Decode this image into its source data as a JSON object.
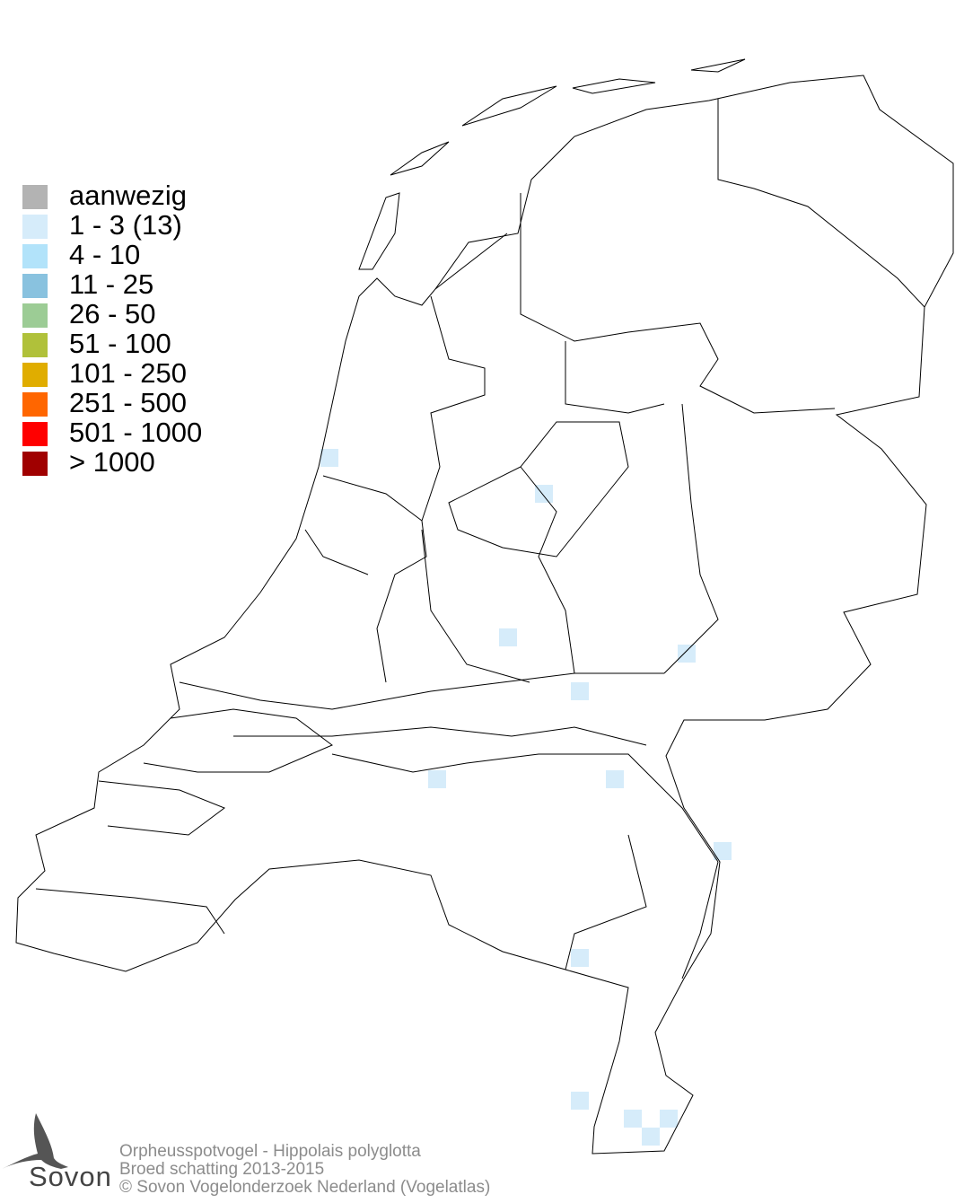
{
  "legend": {
    "items": [
      {
        "label": "aanwezig",
        "color": "#b3b3b3"
      },
      {
        "label": "1 - 3 (13)",
        "color": "#d6ecfa"
      },
      {
        "label": "4 - 10",
        "color": "#b2e3fa"
      },
      {
        "label": "11 - 25",
        "color": "#89c2df"
      },
      {
        "label": "26 - 50",
        "color": "#9ccc95"
      },
      {
        "label": "51 - 100",
        "color": "#b0c13a"
      },
      {
        "label": "101 - 250",
        "color": "#e0ad00"
      },
      {
        "label": "251 - 500",
        "color": "#ff6600"
      },
      {
        "label": "501 - 1000",
        "color": "#ff0000"
      },
      {
        "label": "> 1000",
        "color": "#a00000"
      }
    ]
  },
  "map": {
    "occupied_class": "1 - 3 (13)",
    "square_color": "#d6ecfa"
  },
  "footer": {
    "species": "Orpheusspotvogel - Hippolais polyglotta",
    "subtitle": "Broed schatting 2013-2015",
    "copyright": "© Sovon Vogelonderzoek Nederland (Vogelatlas)"
  },
  "logo": {
    "text": "Sovon"
  }
}
